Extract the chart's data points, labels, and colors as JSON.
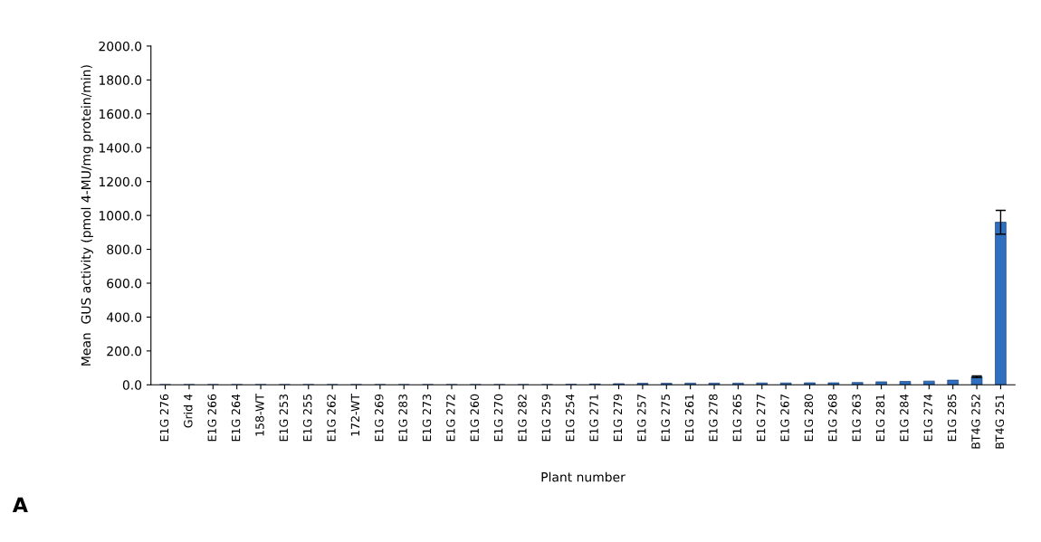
{
  "chart_data": {
    "type": "bar",
    "categories": [
      "E1G 276",
      "Grid 4",
      "E1G 266",
      "E1G 264",
      "158-WT",
      "E1G 253",
      "E1G 255",
      "E1G 262",
      "172-WT",
      "E1G 269",
      "E1G 283",
      "E1G 273",
      "E1G 272",
      "E1G 260",
      "E1G 270",
      "E1G 282",
      "E1G 259",
      "E1G 254",
      "E1G 271",
      "E1G 279",
      "E1G 257",
      "E1G 275",
      "E1G 261",
      "E1G 278",
      "E1G 265",
      "E1G 277",
      "E1G 267",
      "E1G 280",
      "E1G 268",
      "E1G 263",
      "E1G 281",
      "E1G 284",
      "E1G 274",
      "E1G 285",
      "BT4G 252",
      "BT4G 251"
    ],
    "values": [
      2,
      2,
      2,
      2,
      2,
      2,
      2,
      2,
      2,
      2,
      2,
      2,
      2,
      2,
      2,
      2,
      2,
      3,
      5,
      7,
      9,
      9,
      10,
      10,
      10,
      11,
      11,
      12,
      12,
      14,
      18,
      20,
      22,
      28,
      48,
      960
    ],
    "errors": [
      null,
      null,
      null,
      null,
      null,
      null,
      null,
      null,
      null,
      null,
      null,
      null,
      null,
      null,
      null,
      null,
      null,
      null,
      null,
      null,
      null,
      null,
      null,
      null,
      null,
      null,
      null,
      null,
      null,
      null,
      null,
      null,
      null,
      null,
      5,
      70
    ],
    "color": "#2e6fbf",
    "xlabel": "Plant number",
    "ylabel": "Mean  GUS activity (pmol 4-MU/mg protein/min)",
    "ylim": [
      0,
      2000
    ],
    "yticks": [
      {
        "value": 0,
        "label": "0.0"
      },
      {
        "value": 200,
        "label": "200.0"
      },
      {
        "value": 400,
        "label": "400.0"
      },
      {
        "value": 600,
        "label": "600.0"
      },
      {
        "value": 800,
        "label": "800.0"
      },
      {
        "value": 1000,
        "label": "1000.0"
      },
      {
        "value": 1200,
        "label": "1200.0"
      },
      {
        "value": 1400,
        "label": "1400.0"
      },
      {
        "value": 1600,
        "label": "1600.0"
      },
      {
        "value": 1800,
        "label": "1800.0"
      },
      {
        "value": 2000,
        "label": "2000.0"
      }
    ],
    "annotations": [
      "A"
    ],
    "grid": false,
    "legend": false
  }
}
